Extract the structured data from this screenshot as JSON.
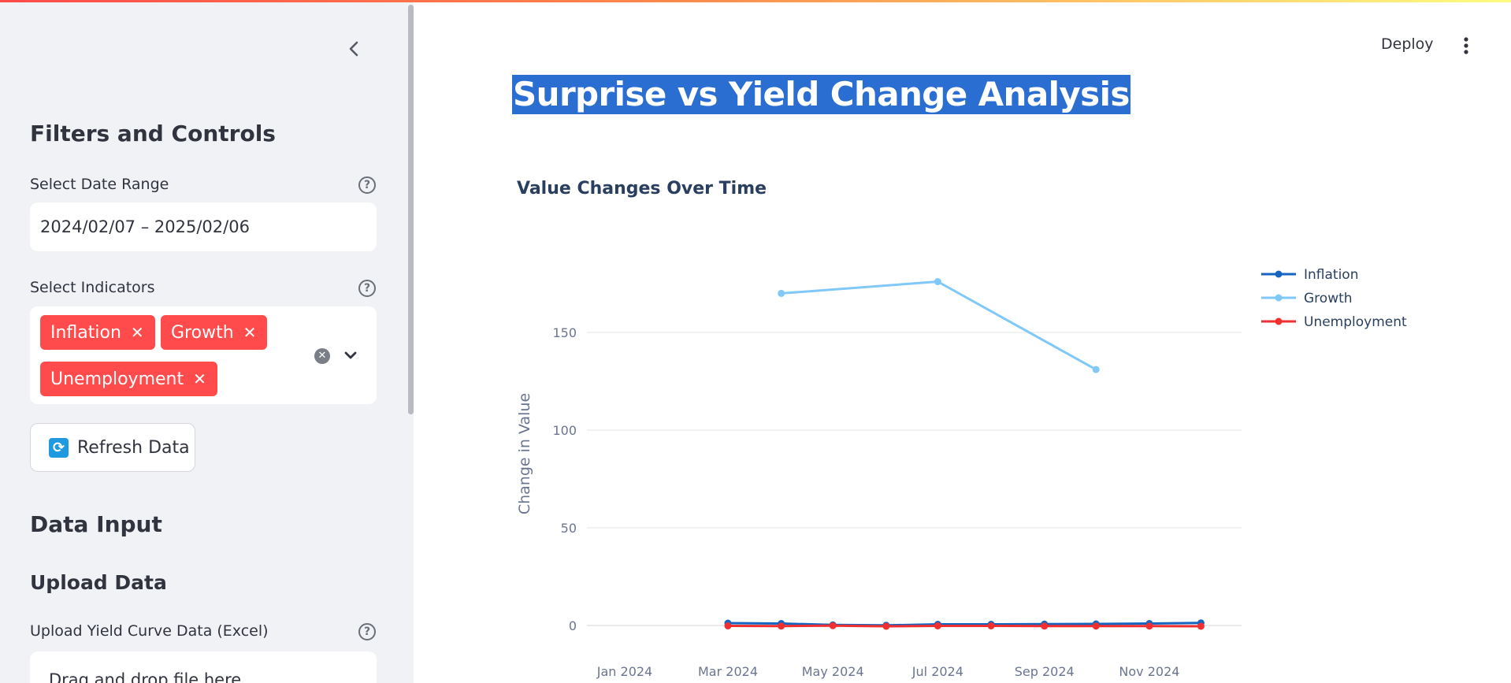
{
  "sidebar": {
    "heading_filters": "Filters and Controls",
    "date_range_label": "Select Date Range",
    "date_range_value": "2024/02/07 – 2025/02/06",
    "indicators_label": "Select Indicators",
    "selected_indicators": [
      "Inflation",
      "Growth",
      "Unemployment"
    ],
    "refresh_label": "Refresh Data",
    "heading_data_input": "Data Input",
    "heading_upload": "Upload Data",
    "upload_label": "Upload Yield Curve Data (Excel)",
    "upload_dropzone_text": "Drag and drop file here",
    "tag_color": "#ff4b4b"
  },
  "header": {
    "deploy_label": "Deploy"
  },
  "main": {
    "title": "Surprise vs Yield Change Analysis"
  },
  "chart_data": {
    "type": "line",
    "title": "Value Changes Over Time",
    "xlabel": "",
    "ylabel": "Change in Value",
    "x_ticks": [
      "Jan 2024",
      "Mar 2024",
      "May 2024",
      "Jul 2024",
      "Sep 2024",
      "Nov 2024"
    ],
    "y_ticks": [
      0,
      50,
      100,
      150
    ],
    "legend_position": "top-right",
    "grid": true,
    "series": [
      {
        "name": "Inflation",
        "color": "#1565c0",
        "points": [
          {
            "x": "2024-03-01",
            "y": 1.2
          },
          {
            "x": "2024-04-01",
            "y": 1.0
          },
          {
            "x": "2024-05-01",
            "y": 0.3
          },
          {
            "x": "2024-06-01",
            "y": 0.1
          },
          {
            "x": "2024-07-01",
            "y": 0.6
          },
          {
            "x": "2024-08-01",
            "y": 0.6
          },
          {
            "x": "2024-09-01",
            "y": 0.7
          },
          {
            "x": "2024-10-01",
            "y": 0.8
          },
          {
            "x": "2024-11-01",
            "y": 1.0
          },
          {
            "x": "2024-12-01",
            "y": 1.3
          }
        ]
      },
      {
        "name": "Growth",
        "color": "#7fc8f8",
        "points": [
          {
            "x": "2024-04-01",
            "y": 170
          },
          {
            "x": "2024-07-01",
            "y": 176
          },
          {
            "x": "2024-10-01",
            "y": 131
          }
        ]
      },
      {
        "name": "Unemployment",
        "color": "#f03030",
        "points": [
          {
            "x": "2024-03-01",
            "y": -0.2
          },
          {
            "x": "2024-04-01",
            "y": -0.3
          },
          {
            "x": "2024-05-01",
            "y": -0.1
          },
          {
            "x": "2024-06-01",
            "y": -0.4
          },
          {
            "x": "2024-07-01",
            "y": -0.2
          },
          {
            "x": "2024-08-01",
            "y": -0.2
          },
          {
            "x": "2024-09-01",
            "y": -0.3
          },
          {
            "x": "2024-10-01",
            "y": -0.3
          },
          {
            "x": "2024-11-01",
            "y": -0.3
          },
          {
            "x": "2024-12-01",
            "y": -0.4
          }
        ]
      }
    ]
  }
}
